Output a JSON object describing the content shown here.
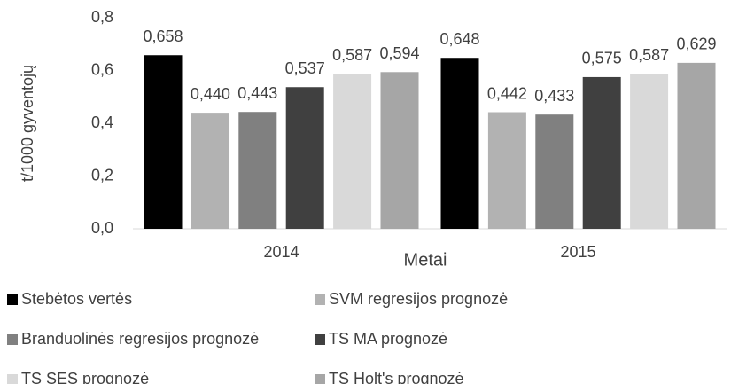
{
  "chart_data": {
    "type": "bar",
    "categories": [
      "2014",
      "2015"
    ],
    "x_label": "Metai",
    "y_label": "t/1000 gyventojų",
    "ylim": [
      0,
      0.8
    ],
    "yticks": [
      {
        "value": 0,
        "label": "0,0"
      },
      {
        "value": 0.2,
        "label": "0,2"
      },
      {
        "value": 0.4,
        "label": "0,4"
      },
      {
        "value": 0.6,
        "label": "0,6"
      },
      {
        "value": 0.8,
        "label": "0,8"
      }
    ],
    "grid": false,
    "legend": "bottom",
    "series": [
      {
        "name": "Stebėtos vertės",
        "color": "#000000",
        "values": [
          0.658,
          0.648
        ],
        "value_labels": [
          "0,658",
          "0,648"
        ]
      },
      {
        "name": "SVM regresijos prognozė",
        "color": "#b2b2b2",
        "values": [
          0.44,
          0.442
        ],
        "value_labels": [
          "0,440",
          "0,442"
        ]
      },
      {
        "name": "Branduolinės regresijos prognozė",
        "color": "#808080",
        "values": [
          0.443,
          0.433
        ],
        "value_labels": [
          "0,443",
          "0,433"
        ]
      },
      {
        "name": "TS MA prognozė",
        "color": "#404040",
        "values": [
          0.537,
          0.575
        ],
        "value_labels": [
          "0,537",
          "0,575"
        ]
      },
      {
        "name": "TS SES prognozė",
        "color": "#d9d9d9",
        "values": [
          0.587,
          0.587
        ],
        "value_labels": [
          "0,587",
          "0,587"
        ]
      },
      {
        "name": "TS Holt's prognozė",
        "color": "#a6a6a6",
        "values": [
          0.594,
          0.629
        ],
        "value_labels": [
          "0,594",
          "0,629"
        ]
      }
    ]
  }
}
